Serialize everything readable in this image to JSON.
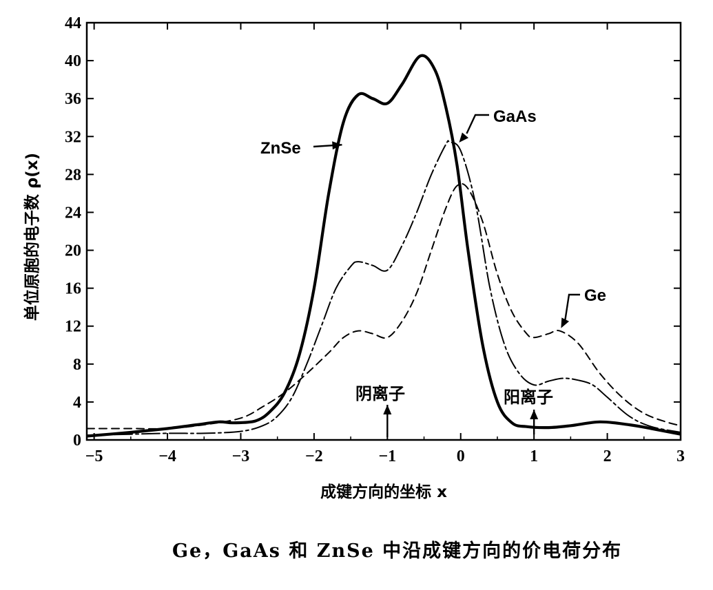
{
  "caption": "Ge，GaAs 和 ZnSe 中沿成键方向的价电荷分布",
  "chart_data": {
    "type": "line",
    "xlabel": "成键方向的坐标 x",
    "ylabel": "单位原胞的电子数 ρ(x)",
    "xlim": [
      -5.1,
      3
    ],
    "ylim": [
      0,
      44
    ],
    "x_ticks": [
      -5,
      -4,
      -3,
      -2,
      -1,
      0,
      1,
      2,
      3
    ],
    "x_tick_labels": [
      "−5",
      "−4",
      "−3",
      "−2",
      "−1",
      "0",
      "1",
      "2",
      "3"
    ],
    "y_ticks": [
      0,
      4,
      8,
      12,
      16,
      20,
      24,
      28,
      32,
      36,
      40,
      44
    ],
    "y_tick_labels": [
      "0",
      "4",
      "8",
      "12",
      "16",
      "20",
      "24",
      "28",
      "32",
      "36",
      "40",
      "44"
    ],
    "grid": false,
    "series": [
      {
        "name": "ZnSe",
        "style": "solid-thick",
        "x": [
          -5.1,
          -4.5,
          -4.0,
          -3.6,
          -3.3,
          -3.1,
          -2.8,
          -2.6,
          -2.4,
          -2.2,
          -2.0,
          -1.8,
          -1.6,
          -1.4,
          -1.2,
          -1.0,
          -0.8,
          -0.55,
          -0.35,
          -0.2,
          -0.05,
          0.1,
          0.3,
          0.5,
          0.7,
          0.9,
          1.2,
          1.5,
          1.9,
          2.3,
          2.6,
          3.0
        ],
        "y": [
          0.4,
          0.8,
          1.2,
          1.6,
          1.9,
          1.8,
          2.0,
          3.0,
          5.0,
          9.0,
          16.0,
          26.0,
          33.5,
          36.4,
          36.0,
          35.5,
          37.5,
          40.5,
          39.0,
          35.0,
          29.0,
          20.0,
          10.0,
          4.0,
          1.8,
          1.4,
          1.3,
          1.5,
          1.9,
          1.6,
          1.2,
          0.6
        ]
      },
      {
        "name": "GaAs",
        "style": "dash-dot",
        "x": [
          -5.1,
          -4.5,
          -4.0,
          -3.5,
          -3.0,
          -2.7,
          -2.5,
          -2.3,
          -2.1,
          -1.9,
          -1.7,
          -1.5,
          -1.4,
          -1.2,
          -1.0,
          -0.8,
          -0.6,
          -0.4,
          -0.2,
          -0.15,
          0.0,
          0.2,
          0.4,
          0.6,
          0.8,
          1.0,
          1.2,
          1.4,
          1.6,
          1.8,
          2.0,
          2.3,
          2.6,
          3.0
        ],
        "y": [
          0.5,
          0.6,
          0.7,
          0.7,
          0.9,
          1.5,
          2.5,
          4.5,
          8.0,
          12.0,
          16.0,
          18.3,
          18.8,
          18.4,
          17.9,
          20.5,
          24.0,
          28.0,
          31.2,
          31.4,
          30.5,
          25.0,
          16.0,
          10.0,
          7.0,
          5.8,
          6.2,
          6.5,
          6.3,
          5.8,
          4.5,
          2.5,
          1.4,
          0.8
        ]
      },
      {
        "name": "Ge",
        "style": "dashed",
        "x": [
          -5.1,
          -4.5,
          -4.0,
          -3.5,
          -3.0,
          -2.7,
          -2.4,
          -2.1,
          -1.8,
          -1.6,
          -1.4,
          -1.2,
          -1.0,
          -0.8,
          -0.6,
          -0.4,
          -0.2,
          -0.05,
          0.1,
          0.3,
          0.5,
          0.7,
          0.9,
          1.0,
          1.2,
          1.35,
          1.6,
          1.9,
          2.2,
          2.5,
          2.8,
          3.0
        ],
        "y": [
          1.2,
          1.2,
          1.2,
          1.6,
          2.3,
          3.5,
          5.0,
          7.0,
          9.2,
          10.8,
          11.5,
          11.2,
          10.8,
          12.5,
          15.5,
          20.0,
          24.5,
          26.8,
          26.5,
          23.0,
          17.5,
          13.5,
          11.2,
          10.8,
          11.2,
          11.5,
          10.2,
          7.0,
          4.5,
          2.8,
          1.9,
          1.5
        ]
      }
    ],
    "annotations": [
      {
        "text": "ZnSe",
        "target_series": "ZnSe",
        "x": -1.6,
        "y": 31.2
      },
      {
        "text": "GaAs",
        "target_series": "GaAs",
        "x": -0.05,
        "y": 31.0
      },
      {
        "text": "Ge",
        "target_series": "Ge",
        "x": 1.35,
        "y": 11.5
      },
      {
        "text": "阴离子",
        "target_series": null,
        "x": -1.0,
        "y": 0.3
      },
      {
        "text": "阳离子",
        "target_series": null,
        "x": 1.0,
        "y": 0.3
      }
    ]
  }
}
